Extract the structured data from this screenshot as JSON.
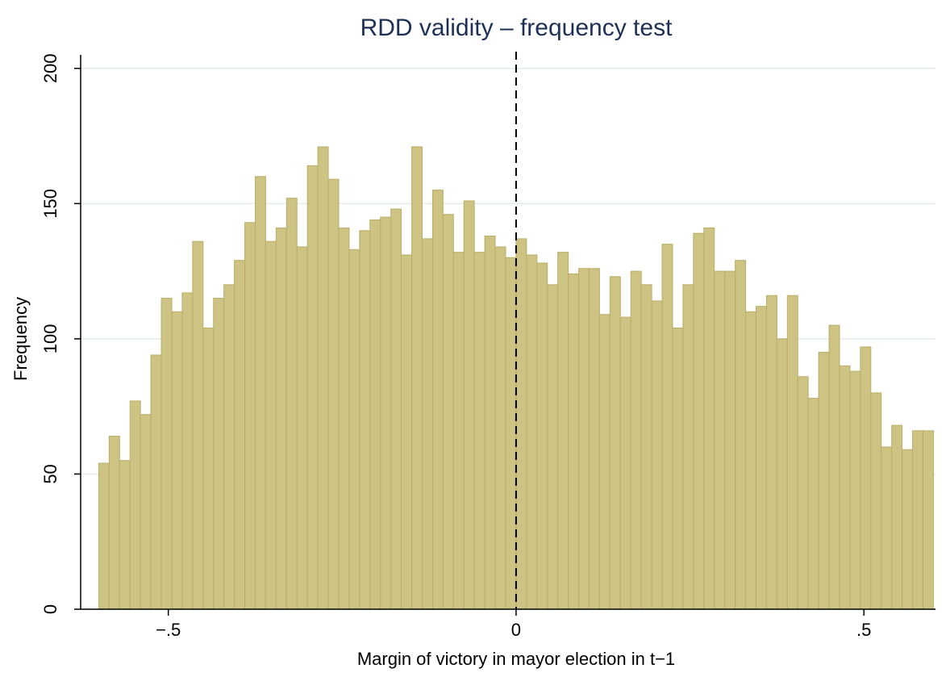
{
  "chart_data": {
    "type": "histogram",
    "title": "RDD validity – frequency test",
    "xlabel": "Margin of victory in mayor election in t−1",
    "ylabel": "Frequency",
    "bins": [
      -0.6,
      -0.585,
      -0.57,
      -0.555,
      -0.54,
      -0.525,
      -0.51,
      -0.495,
      -0.48,
      -0.465,
      -0.45,
      -0.435,
      -0.42,
      -0.405,
      -0.39,
      -0.375,
      -0.36,
      -0.345,
      -0.33,
      -0.315,
      -0.3,
      -0.285,
      -0.27,
      -0.255,
      -0.24,
      -0.225,
      -0.21,
      -0.195,
      -0.18,
      -0.165,
      -0.15,
      -0.135,
      -0.12,
      -0.105,
      -0.09,
      -0.075,
      -0.06,
      -0.045,
      -0.03,
      -0.015,
      0,
      0.015,
      0.03,
      0.045,
      0.06,
      0.075,
      0.09,
      0.105,
      0.12,
      0.135,
      0.15,
      0.165,
      0.18,
      0.195,
      0.21,
      0.225,
      0.24,
      0.255,
      0.27,
      0.285,
      0.3,
      0.315,
      0.33,
      0.345,
      0.36,
      0.375,
      0.39,
      0.405,
      0.42,
      0.435,
      0.45,
      0.465,
      0.48,
      0.495,
      0.51,
      0.525,
      0.54,
      0.555,
      0.57,
      0.585,
      0.6
    ],
    "values": [
      54,
      64,
      55,
      77,
      72,
      94,
      115,
      110,
      117,
      136,
      104,
      115,
      120,
      129,
      143,
      160,
      136,
      141,
      152,
      134,
      164,
      171,
      159,
      141,
      133,
      140,
      144,
      145,
      148,
      131,
      171,
      137,
      155,
      146,
      132,
      151,
      132,
      138,
      134,
      130,
      137,
      131,
      128,
      120,
      132,
      124,
      126,
      126,
      109,
      123,
      108,
      125,
      120,
      114,
      135,
      104,
      120,
      139,
      141,
      125,
      125,
      129,
      110,
      112,
      116,
      100,
      116,
      86,
      78,
      95,
      105,
      90,
      88,
      97,
      80,
      60,
      68,
      59,
      66,
      66
    ],
    "color": "#cdc382",
    "edge_color": "#b9ae6a",
    "xlim": [
      -0.626,
      0.603
    ],
    "ylim": [
      0,
      205
    ],
    "xticks": [
      {
        "value": -0.5,
        "label": "−.5"
      },
      0,
      {
        "value": 0.5,
        "label": ".5"
      }
    ],
    "yticks": [
      0,
      50,
      100,
      150,
      200
    ],
    "grid": true,
    "reference_line": 0
  }
}
